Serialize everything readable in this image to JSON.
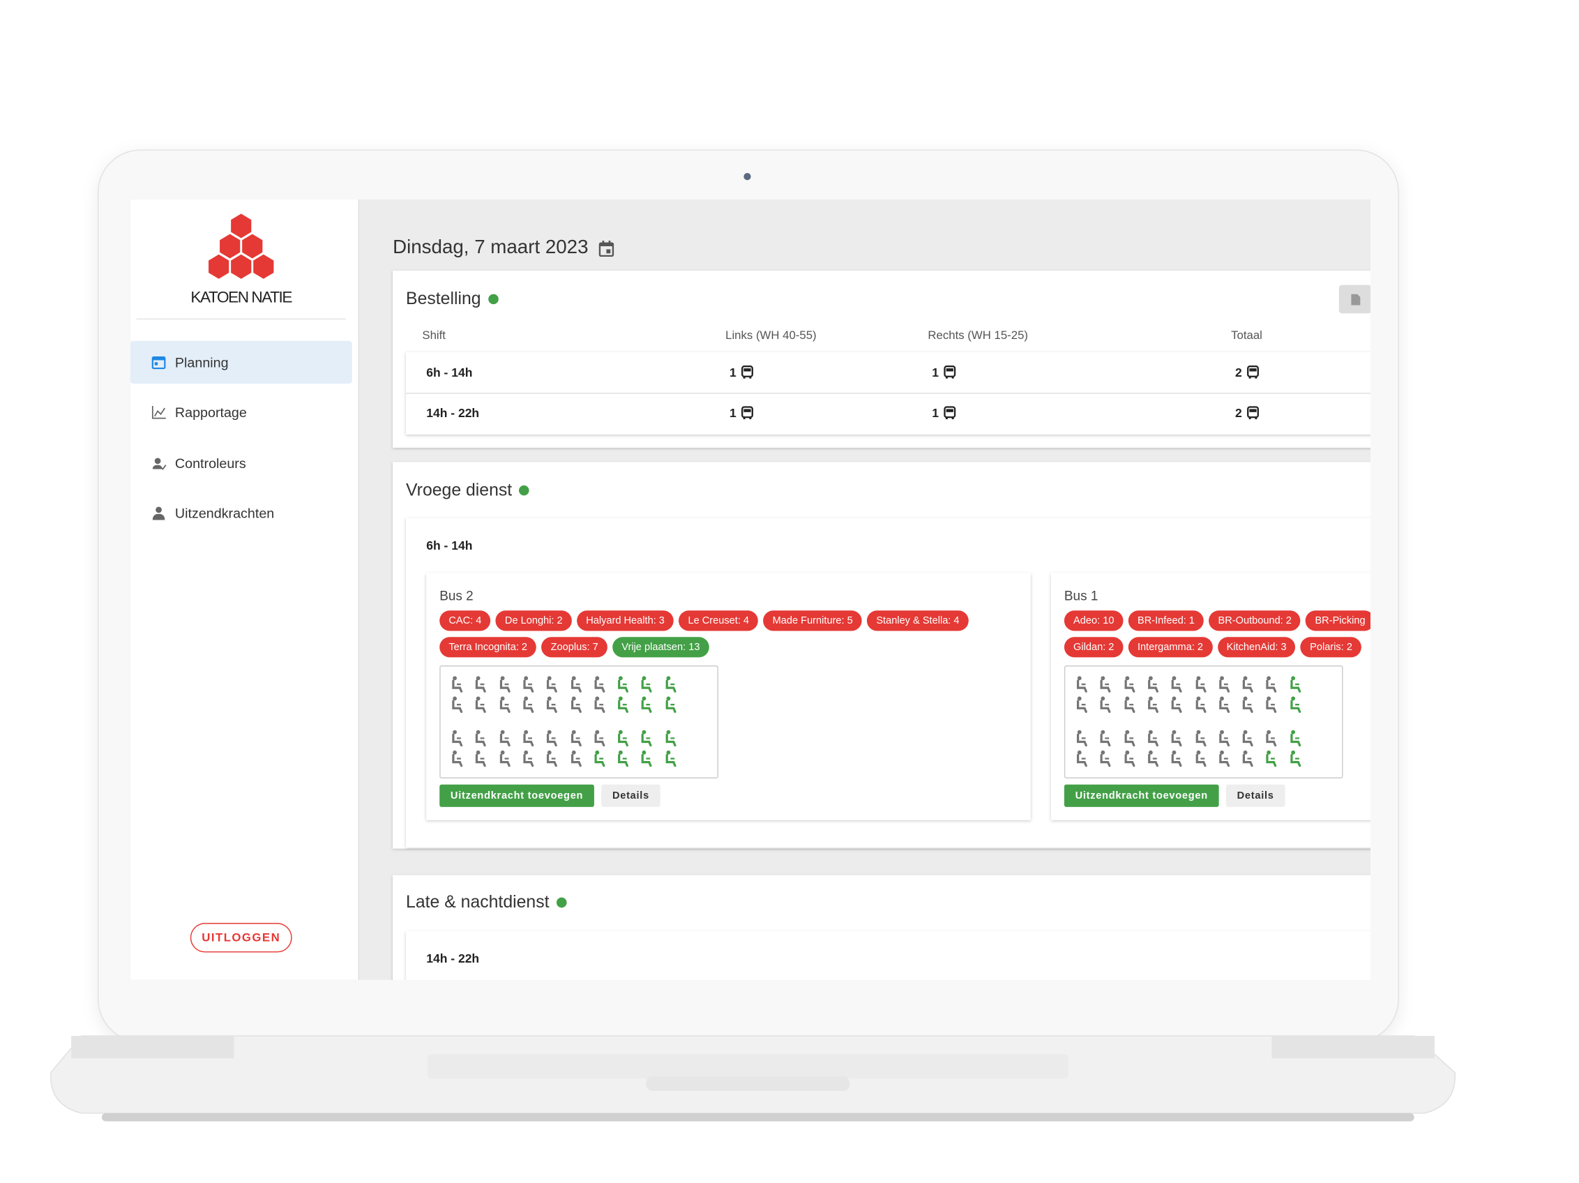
{
  "date_title": "Dinsdag, 7 maart 2023",
  "sidebar": {
    "brand": "KATOEN NATIE",
    "nav": [
      "Planning",
      "Rapportage",
      "Controleurs",
      "Uitzendkrachten"
    ],
    "logout": "UITLOGGEN"
  },
  "bestelling": {
    "title": "Bestelling",
    "headers": [
      "Shift",
      "Links (WH 40-55)",
      "Rechts (WH 15-25)",
      "Totaal"
    ],
    "rows": [
      [
        "6h - 14h",
        "1",
        "1",
        "2"
      ],
      [
        "14h - 22h",
        "1",
        "1",
        "2"
      ]
    ]
  },
  "vroege_dienst": {
    "title": "Vroege dienst",
    "shift": "6h - 14h",
    "buses": [
      {
        "name": "Bus 2",
        "tags": [
          {
            "text": "CAC: 4",
            "color": "#e53935"
          },
          {
            "text": "De Longhi: 2",
            "color": "#e53935"
          },
          {
            "text": "Halyard Health: 3",
            "color": "#e53935"
          },
          {
            "text": "Le Creuset: 4",
            "color": "#e53935"
          },
          {
            "text": "Made Furniture: 5",
            "color": "#e53935"
          },
          {
            "text": "Stanley & Stella: 4",
            "color": "#e53935"
          },
          {
            "text": "Terra Incognita: 2",
            "color": "#e53935"
          },
          {
            "text": "Zooplus: 7",
            "color": "#e53935"
          },
          {
            "text": "Vrije plaatsen: 13",
            "color": "#43a047"
          }
        ],
        "add": "Uitzendkracht toevoegen",
        "details": "Details"
      },
      {
        "name": "Bus 1",
        "tags": [
          {
            "text": "Adeo: 10",
            "color": "#e53935"
          },
          {
            "text": "BR-Infeed: 1",
            "color": "#e53935"
          },
          {
            "text": "BR-Outbound: 2",
            "color": "#e53935"
          },
          {
            "text": "BR-Picking",
            "color": "#e53935"
          },
          {
            "text": "Gildan: 2",
            "color": "#e53935"
          },
          {
            "text": "Intergamma: 2",
            "color": "#e53935"
          },
          {
            "text": "KitchenAid: 3",
            "color": "#e53935"
          },
          {
            "text": "Polaris: 2",
            "color": "#e53935"
          }
        ],
        "add": "Uitzendkracht toevoegen",
        "details": "Details"
      }
    ]
  },
  "late_dienst": {
    "title": "Late & nachtdienst",
    "shift": "14h - 22h"
  }
}
